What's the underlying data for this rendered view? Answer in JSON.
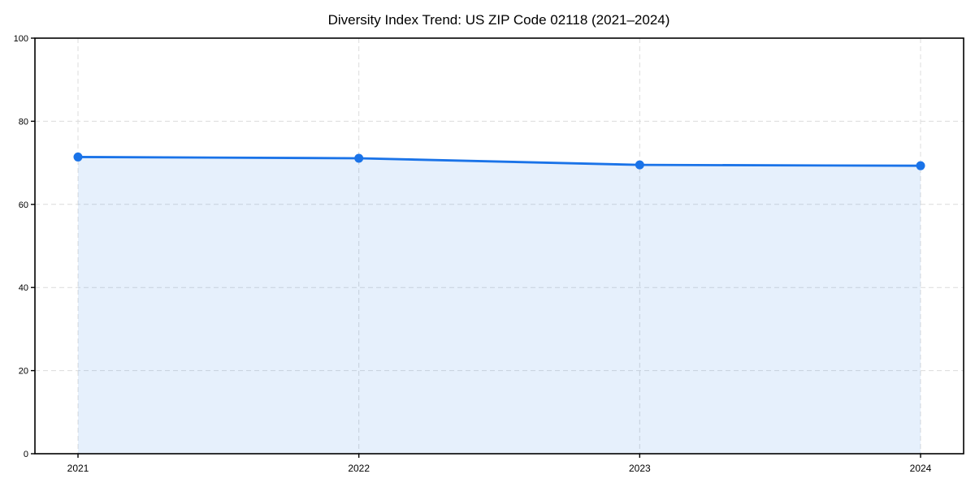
{
  "chart_data": {
    "type": "area",
    "title": "Diversity Index Trend: US ZIP Code 02118 (2021–2024)",
    "categories": [
      "2021",
      "2022",
      "2023",
      "2024"
    ],
    "series": [
      {
        "name": "Diversity Index",
        "values": [
          71.4,
          71.1,
          69.5,
          69.3
        ]
      }
    ],
    "xlabel": "",
    "ylabel": "",
    "ylim": [
      0,
      100
    ],
    "yticks": [
      0,
      20,
      40,
      60,
      80,
      100
    ],
    "grid": true,
    "grid_style": "dashed",
    "legend": "none",
    "marker": "circle",
    "colors": {
      "line": "#1a73e8",
      "marker": "#1a73e8",
      "fill": "rgba(26,115,232,0.11)",
      "gridline": "#dcdcdc",
      "axis": "#000000",
      "text": "#000000",
      "background": "#ffffff"
    }
  }
}
